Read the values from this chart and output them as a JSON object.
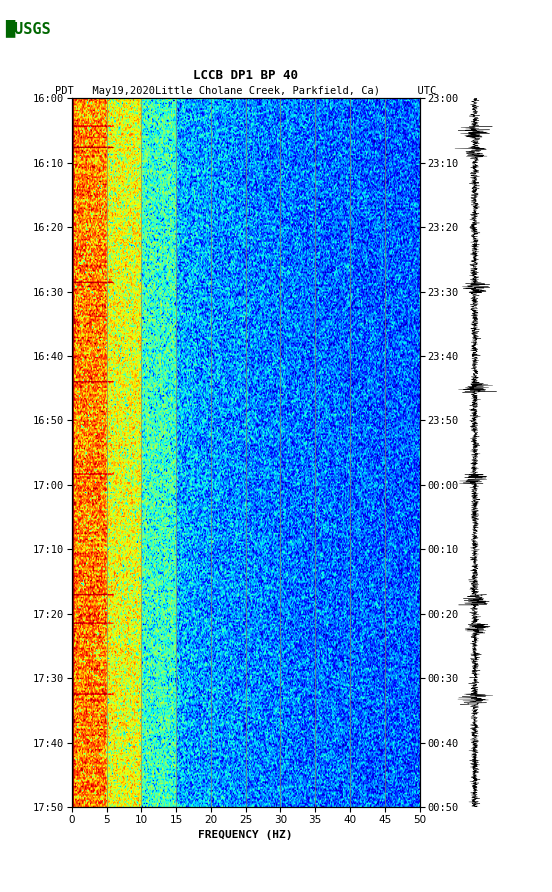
{
  "title_line1": "LCCB DP1 BP 40",
  "title_line2": "PDT   May19,2020Little Cholane Creek, Parkfield, Ca)      UTC",
  "left_yticks": [
    "16:00",
    "16:10",
    "16:20",
    "16:30",
    "16:40",
    "16:50",
    "17:00",
    "17:10",
    "17:20",
    "17:30",
    "17:40",
    "17:50"
  ],
  "right_yticks": [
    "23:00",
    "23:10",
    "23:20",
    "23:30",
    "23:40",
    "23:50",
    "00:00",
    "00:10",
    "00:20",
    "00:30",
    "00:40",
    "00:50"
  ],
  "xticks": [
    0,
    5,
    10,
    15,
    20,
    25,
    30,
    35,
    40,
    45,
    50
  ],
  "xlabel": "FREQUENCY (HZ)",
  "freq_max": 50,
  "n_time": 500,
  "n_freq": 500,
  "vgrid_lines": [
    5,
    10,
    15,
    20,
    25,
    30,
    35,
    40,
    45
  ],
  "background_color": "#ffffff",
  "vmin": -3.0,
  "vmax": 0.5
}
